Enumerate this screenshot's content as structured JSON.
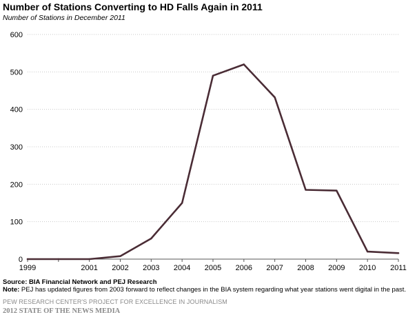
{
  "title": "Number of Stations Converting to HD Falls Again in 2011",
  "subtitle": "Number of Stations in December 2011",
  "footer": {
    "source": "Source: BIA Financial Network and PEJ Research",
    "note_label": "Note:",
    "note_text": " PEJ has updated figures from 2003 forward to reflect changes in the BIA system regarding what year stations went digital in the past.",
    "org": "PEW RESEARCH CENTER'S PROJECT FOR EXCELLENCE IN JOURNALISM",
    "report": "2012 STATE OF THE NEWS MEDIA"
  },
  "colors": {
    "line": "#4a2c35",
    "grid": "#c8c8c8",
    "axis": "#555555"
  },
  "chart_data": {
    "type": "line",
    "title": "Number of Stations Converting to HD Falls Again in 2011",
    "subtitle": "Number of Stations in December 2011",
    "x": [
      "1999",
      "2000",
      "2001",
      "2002",
      "2003",
      "2004",
      "2005",
      "2006",
      "2007",
      "2008",
      "2009",
      "2010",
      "2011"
    ],
    "x_tick_labels": [
      "1999",
      "2001",
      "2002",
      "2003",
      "2004",
      "2005",
      "2006",
      "2007",
      "2008",
      "2009",
      "2010",
      "2011"
    ],
    "y_ticks": [
      0,
      100,
      200,
      300,
      400,
      500,
      600
    ],
    "ylim": [
      0,
      600
    ],
    "grid": true,
    "legend": "none",
    "series": [
      {
        "values": [
          0,
          0,
          0,
          8,
          55,
          150,
          490,
          520,
          432,
          185,
          183,
          20,
          16
        ]
      }
    ]
  }
}
